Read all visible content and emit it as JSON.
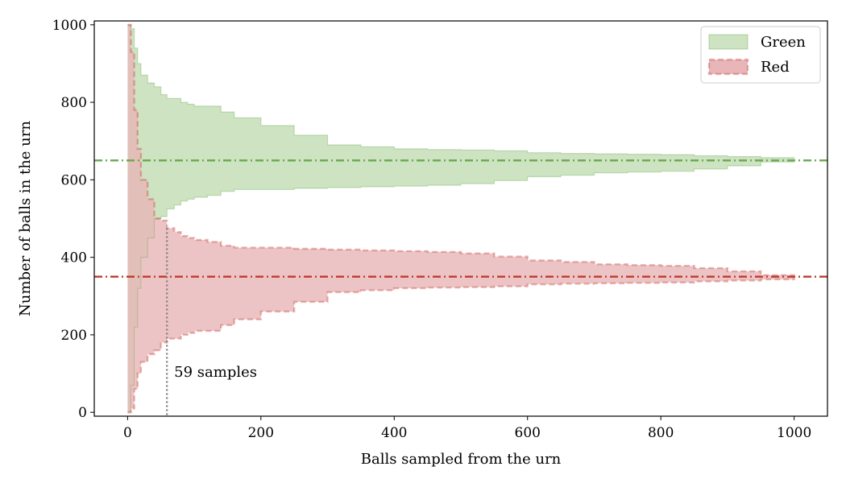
{
  "chart_data": {
    "type": "area",
    "xlabel": "Balls sampled from the urn",
    "ylabel": "Number of balls in the urn",
    "xlim": [
      -50,
      1050
    ],
    "ylim": [
      -10,
      1010
    ],
    "xticks": [
      0,
      200,
      400,
      600,
      800,
      1000
    ],
    "yticks": [
      0,
      200,
      400,
      600,
      800,
      1000
    ],
    "legend_position": "top-right",
    "series": [
      {
        "name": "Green",
        "color": "#6aa84f",
        "fill": "#cde3c2",
        "edge_style": "solid",
        "true_value": 650,
        "x": [
          0,
          5,
          10,
          15,
          20,
          30,
          40,
          50,
          59,
          70,
          80,
          90,
          100,
          120,
          140,
          160,
          200,
          250,
          300,
          350,
          400,
          450,
          500,
          550,
          600,
          650,
          700,
          750,
          800,
          850,
          900,
          950,
          1000
        ],
        "upper": [
          1000,
          990,
          940,
          900,
          870,
          850,
          840,
          820,
          810,
          810,
          800,
          795,
          790,
          790,
          775,
          760,
          740,
          715,
          690,
          685,
          680,
          678,
          677,
          675,
          670,
          668,
          667,
          666,
          665,
          662,
          660,
          657,
          650
        ],
        "lower": [
          0,
          70,
          220,
          320,
          400,
          450,
          500,
          505,
          525,
          535,
          545,
          550,
          555,
          560,
          570,
          575,
          575,
          578,
          580,
          582,
          584,
          586,
          590,
          598,
          608,
          612,
          618,
          620,
          622,
          628,
          636,
          646,
          650
        ]
      },
      {
        "name": "Red",
        "color": "#c0392b",
        "fill": "#e8b5b8",
        "edge_style": "dashed",
        "true_value": 350,
        "x": [
          0,
          5,
          10,
          15,
          20,
          30,
          40,
          50,
          59,
          70,
          80,
          90,
          100,
          120,
          140,
          160,
          200,
          250,
          300,
          350,
          400,
          450,
          500,
          550,
          600,
          650,
          700,
          750,
          800,
          850,
          900,
          950,
          1000
        ],
        "upper": [
          1000,
          930,
          780,
          680,
          600,
          550,
          500,
          495,
          475,
          465,
          455,
          450,
          445,
          440,
          430,
          425,
          425,
          422,
          420,
          418,
          416,
          414,
          410,
          402,
          392,
          388,
          382,
          380,
          378,
          372,
          364,
          354,
          350
        ],
        "lower": [
          0,
          10,
          60,
          100,
          130,
          150,
          160,
          180,
          190,
          190,
          200,
          205,
          210,
          210,
          225,
          240,
          260,
          285,
          310,
          315,
          320,
          322,
          323,
          325,
          330,
          332,
          333,
          334,
          335,
          338,
          340,
          343,
          350
        ]
      }
    ],
    "annotation": {
      "x": 59,
      "text": "59 samples",
      "style": "dotted",
      "color": "#808080"
    }
  }
}
